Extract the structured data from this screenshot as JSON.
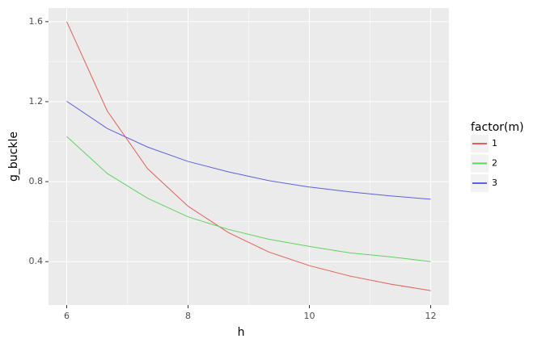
{
  "chart_data": {
    "type": "line",
    "x": [
      6,
      6.667,
      7.333,
      8,
      8.667,
      9.333,
      10,
      10.667,
      11.333,
      12
    ],
    "series": [
      {
        "name": "1",
        "color": "#e35f55",
        "values": [
          1.6,
          1.154,
          0.865,
          0.677,
          0.545,
          0.448,
          0.38,
          0.328,
          0.288,
          0.255
        ]
      },
      {
        "name": "2",
        "color": "#5fd35f",
        "values": [
          1.026,
          0.841,
          0.717,
          0.624,
          0.561,
          0.512,
          0.476,
          0.444,
          0.424,
          0.4
        ]
      },
      {
        "name": "3",
        "color": "#5f5fe3",
        "values": [
          1.202,
          1.066,
          0.973,
          0.901,
          0.849,
          0.805,
          0.773,
          0.749,
          0.729,
          0.712
        ]
      }
    ],
    "xlabel": "h",
    "ylabel": "g_buckle",
    "legend_title": "factor(m)",
    "xlim": [
      5.7,
      12.3
    ],
    "ylim": [
      0.183,
      1.668
    ],
    "xticks": [
      6,
      8,
      10,
      12
    ],
    "yticks": [
      0.4,
      0.8,
      1.2,
      1.6
    ],
    "grid": true,
    "legend": "right"
  }
}
